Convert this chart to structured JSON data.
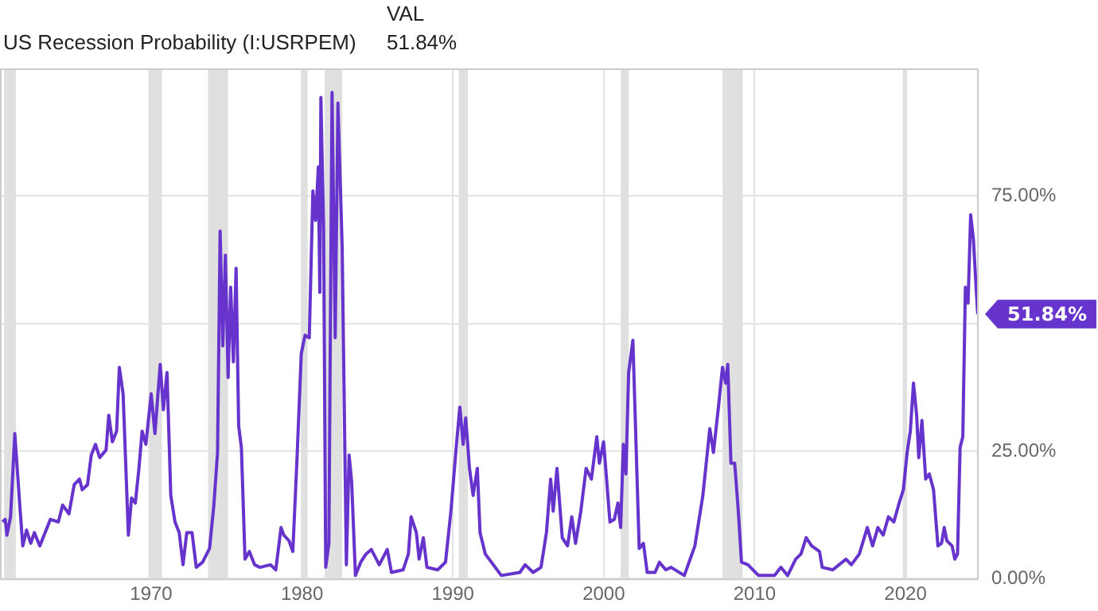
{
  "chart_data": {
    "type": "line",
    "legend": "top left",
    "grid": true,
    "marker": "none",
    "line_style": "solid",
    "xlim": [
      1959.98,
      2024.85
    ],
    "xticks": [
      1970,
      1980,
      1990,
      2000,
      2010,
      2020
    ],
    "ylim": [
      0,
      100
    ],
    "yticks": [
      {
        "value": 0,
        "label": "0.00%"
      },
      {
        "value": 25,
        "label": "25.00%"
      },
      {
        "value": 50,
        "label": null
      },
      {
        "value": 75,
        "label": "75.00%"
      }
    ],
    "bands": [
      {
        "axis": "x",
        "from": 1960.25,
        "to": 1961.03,
        "color": "#e0e0e0"
      },
      {
        "axis": "x",
        "from": 1969.82,
        "to": 1970.71,
        "color": "#e0e0e0"
      },
      {
        "axis": "x",
        "from": 1973.77,
        "to": 1975.1,
        "color": "#e0e0e0"
      },
      {
        "axis": "x",
        "from": 1979.92,
        "to": 1980.37,
        "color": "#e0e0e0"
      },
      {
        "axis": "x",
        "from": 1981.5,
        "to": 1982.66,
        "color": "#e0e0e0"
      },
      {
        "axis": "x",
        "from": 1990.39,
        "to": 1990.99,
        "color": "#e0e0e0"
      },
      {
        "axis": "x",
        "from": 2001.12,
        "to": 2001.65,
        "color": "#e0e0e0"
      },
      {
        "axis": "x",
        "from": 2007.87,
        "to": 2009.21,
        "color": "#e0e0e0"
      },
      {
        "axis": "x",
        "from": 2019.82,
        "to": 2020.11,
        "color": "#e0e0e0"
      }
    ],
    "annotations": [
      "51.84%",
      "VAL",
      "51.84%"
    ],
    "series": [
      {
        "name": "US Recession Probability (I:USRPEM)",
        "color": "#6633cc",
        "x": [
          1960.15,
          1960.33,
          1960.44,
          1960.68,
          1960.96,
          1961.32,
          1961.49,
          1961.74,
          1962.02,
          1962.26,
          1962.62,
          1963.32,
          1963.85,
          1964.13,
          1964.55,
          1964.9,
          1965.25,
          1965.43,
          1965.78,
          1966.03,
          1966.31,
          1966.59,
          1967.01,
          1967.19,
          1967.43,
          1967.71,
          1967.89,
          1968.14,
          1968.49,
          1968.7,
          1968.95,
          1969.19,
          1969.4,
          1969.65,
          1970.0,
          1970.25,
          1970.6,
          1970.81,
          1971.05,
          1971.3,
          1971.58,
          1971.86,
          1972.11,
          1972.36,
          1972.71,
          1972.99,
          1973.41,
          1973.87,
          1974.15,
          1974.4,
          1974.57,
          1974.75,
          1974.92,
          1975.1,
          1975.27,
          1975.45,
          1975.63,
          1975.8,
          1975.98,
          1976.22,
          1976.51,
          1976.86,
          1977.21,
          1977.91,
          1978.26,
          1978.61,
          1978.79,
          1979.14,
          1979.39,
          1979.67,
          1979.95,
          1980.2,
          1980.48,
          1980.72,
          1980.9,
          1981.08,
          1981.18,
          1981.25,
          1981.43,
          1981.57,
          1981.78,
          1981.99,
          1982.2,
          1982.38,
          1982.66,
          1982.94,
          1983.12,
          1983.29,
          1983.54,
          1983.89,
          1984.24,
          1984.59,
          1985.12,
          1985.65,
          1985.93,
          1986.7,
          1987.05,
          1987.23,
          1987.58,
          1987.76,
          1988.04,
          1988.28,
          1988.99,
          1989.51,
          1989.87,
          1990.22,
          1990.46,
          1990.68,
          1990.85,
          1991.1,
          1991.34,
          1991.62,
          1991.8,
          1992.15,
          1992.68,
          1993.21,
          1994.44,
          1994.79,
          1995.32,
          1995.84,
          1996.2,
          1996.48,
          1996.65,
          1996.9,
          1997.25,
          1997.6,
          1997.88,
          1998.13,
          1998.48,
          1998.83,
          1999.18,
          1999.54,
          1999.71,
          1999.99,
          2000.41,
          2000.7,
          2000.94,
          2001.12,
          2001.3,
          2001.47,
          2001.65,
          2001.93,
          2002.35,
          2002.63,
          2002.88,
          2003.4,
          2003.69,
          2004.11,
          2004.46,
          2005.34,
          2006.04,
          2006.57,
          2007.03,
          2007.27,
          2007.62,
          2007.87,
          2008.08,
          2008.22,
          2008.43,
          2008.68,
          2008.92,
          2009.13,
          2009.56,
          2010.26,
          2011.32,
          2011.74,
          2012.19,
          2012.72,
          2013.07,
          2013.42,
          2013.78,
          2014.3,
          2014.48,
          2015.18,
          2016.06,
          2016.41,
          2016.94,
          2017.47,
          2017.82,
          2018.17,
          2018.52,
          2018.87,
          2019.23,
          2019.58,
          2019.86,
          2020.11,
          2020.32,
          2020.53,
          2020.74,
          2020.88,
          2021.09,
          2021.34,
          2021.58,
          2021.86,
          2022.15,
          2022.39,
          2022.57,
          2022.74,
          2023.09,
          2023.27,
          2023.45,
          2023.62,
          2023.8,
          2023.97,
          2024.15,
          2024.32,
          2024.5,
          2024.68,
          2024.79
        ],
        "values": [
          11.1,
          11.6,
          8.5,
          12.1,
          28.4,
          13.2,
          6.4,
          9.5,
          6.9,
          9.0,
          6.4,
          11.6,
          11.1,
          14.4,
          12.7,
          18.4,
          19.5,
          17.4,
          18.4,
          24.2,
          26.3,
          23.7,
          25.2,
          32.0,
          26.8,
          28.9,
          41.4,
          36.2,
          8.5,
          15.8,
          14.8,
          21.6,
          28.9,
          26.3,
          36.2,
          28.4,
          42.0,
          33.1,
          40.4,
          16.3,
          11.1,
          9.0,
          2.7,
          9.0,
          9.0,
          2.2,
          3.2,
          5.9,
          14.2,
          24.7,
          68.1,
          45.6,
          63.4,
          39.4,
          57.1,
          42.5,
          60.8,
          29.9,
          25.7,
          3.8,
          5.3,
          2.7,
          2.2,
          2.7,
          1.7,
          10.0,
          8.5,
          7.4,
          5.3,
          23.7,
          44.1,
          47.7,
          47.2,
          76.0,
          70.2,
          80.7,
          56.1,
          94.3,
          68.7,
          2.2,
          6.9,
          95.3,
          47.2,
          93.2,
          65.0,
          2.7,
          24.2,
          18.9,
          0.6,
          3.2,
          4.8,
          5.7,
          2.7,
          5.7,
          1.2,
          1.7,
          4.8,
          12.1,
          9.0,
          3.8,
          8.0,
          2.2,
          1.7,
          3.2,
          13.2,
          25.7,
          33.6,
          26.3,
          31.5,
          21.6,
          16.3,
          21.6,
          9.0,
          4.8,
          2.7,
          0.6,
          1.2,
          2.7,
          1.2,
          2.2,
          9.0,
          19.5,
          13.2,
          21.6,
          8.0,
          6.4,
          12.1,
          6.9,
          13.2,
          21.6,
          19.5,
          27.8,
          22.6,
          26.8,
          11.1,
          11.6,
          14.8,
          10.0,
          26.3,
          20.5,
          40.4,
          46.7,
          5.9,
          6.9,
          1.2,
          1.2,
          3.2,
          1.7,
          2.2,
          0.6,
          6.4,
          16.3,
          29.4,
          24.7,
          34.1,
          41.4,
          38.3,
          42.0,
          22.6,
          22.6,
          13.2,
          3.2,
          2.7,
          0.6,
          0.6,
          2.2,
          0.6,
          3.8,
          4.8,
          8.0,
          6.4,
          5.3,
          2.2,
          1.7,
          3.8,
          2.7,
          4.8,
          10.0,
          6.4,
          10.0,
          8.5,
          12.1,
          11.1,
          14.8,
          17.4,
          24.7,
          28.9,
          38.3,
          32.0,
          23.7,
          31.0,
          19.5,
          20.5,
          17.4,
          6.4,
          6.9,
          10.0,
          7.4,
          6.4,
          3.8,
          4.8,
          25.7,
          27.8,
          57.1,
          54.0,
          71.3,
          66.6,
          57.1,
          51.84
        ]
      }
    ]
  }
}
